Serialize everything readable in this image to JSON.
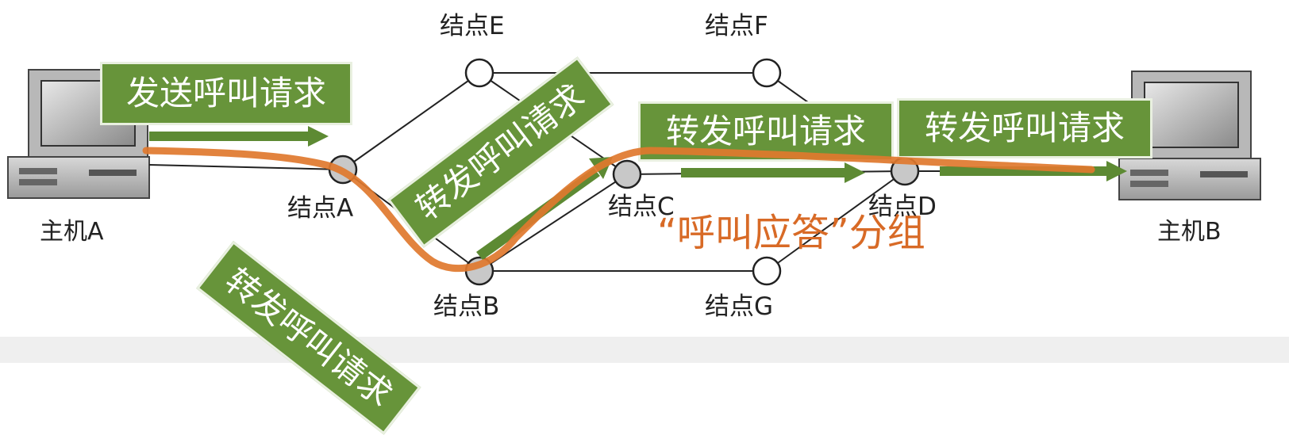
{
  "hosts": {
    "a": "主机A",
    "b": "主机B"
  },
  "nodes": {
    "a": "结点A",
    "b": "结点B",
    "c": "结点C",
    "d": "结点D",
    "e": "结点E",
    "f": "结点F",
    "g": "结点G"
  },
  "boxes": {
    "send": "发送呼叫请求",
    "fwd_ab": "转发呼叫请求",
    "fwd_bc": "转发呼叫请求",
    "fwd_cd": "转发呼叫请求",
    "fwd_db": "转发呼叫请求"
  },
  "caption": "“呼叫应答”分组",
  "colors": {
    "box_green": "#67943a",
    "path_orange": "#e0782e",
    "caption_orange": "#d86a26",
    "node_grey": "#c8c8c8"
  }
}
